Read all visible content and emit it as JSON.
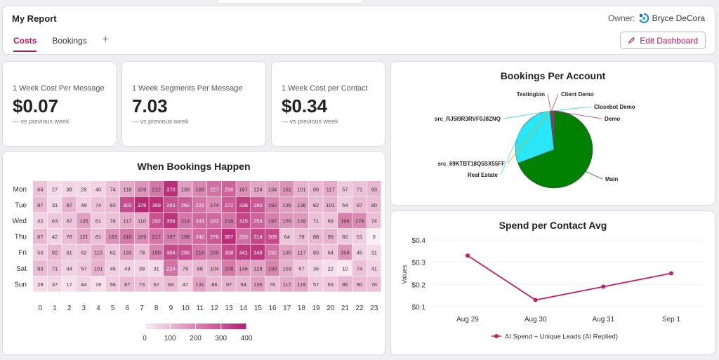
{
  "header": {
    "title": "My Report",
    "owner_label": "Owner:",
    "owner_name": "Bryce DeCora",
    "tabs": [
      {
        "label": "Costs"
      },
      {
        "label": "Bookings"
      }
    ],
    "add_tab_label": "+",
    "edit_label": "Edit Dashboard"
  },
  "kpis": [
    {
      "label": "1 Week Cost Per Message",
      "value": "$0.07",
      "sub": "— vs previous week"
    },
    {
      "label": "1 Week Segments Per Message",
      "value": "7.03",
      "sub": "— vs previous week"
    },
    {
      "label": "1 Week Cost per Contact",
      "value": "$0.34",
      "sub": "— vs previous week"
    }
  ],
  "colors": {
    "accent": "#b5175a",
    "heat_low": "#fbeef4",
    "heat_high": "#b51f6e",
    "pie_main": "#008000",
    "pie_real_estate": "#29e6f7",
    "line": "#c41f63"
  },
  "heatmap": {
    "title": "When Bookings Happen",
    "chart_data": {
      "type": "heatmap",
      "title": "When Bookings Happen",
      "rows": [
        "Mon",
        "Tue",
        "Wed",
        "Thu",
        "Fri",
        "Sat",
        "Sun"
      ],
      "columns": [
        "0",
        "1",
        "2",
        "3",
        "4",
        "5",
        "6",
        "7",
        "8",
        "9",
        "10",
        "11",
        "12",
        "13",
        "14",
        "15",
        "16",
        "17",
        "18",
        "19",
        "20",
        "21",
        "22",
        "23"
      ],
      "values": [
        [
          66,
          27,
          38,
          29,
          40,
          74,
          118,
          159,
          212,
          370,
          138,
          183,
          227,
          256,
          167,
          124,
          134,
          161,
          101,
          90,
          117,
          57,
          71,
          93
        ],
        [
          87,
          31,
          97,
          48,
          74,
          83,
          303,
          378,
          369,
          293,
          268,
          222,
          174,
          272,
          338,
          280,
          192,
          135,
          136,
          82,
          101,
          54,
          87,
          80
        ],
        [
          42,
          63,
          67,
          135,
          61,
          76,
          117,
          110,
          292,
          356,
          214,
          243,
          242,
          218,
          315,
          254,
          197,
          155,
          149,
          71,
          69,
          196,
          178,
          74
        ],
        [
          87,
          42,
          78,
          121,
          81,
          163,
          210,
          169,
          217,
          197,
          198,
          240,
          278,
          367,
          233,
          314,
          309,
          64,
          79,
          88,
          99,
          60,
          51,
          0
        ],
        [
          50,
          92,
          61,
          62,
          110,
          62,
          133,
          78,
          190,
          304,
          299,
          216,
          200,
          308,
          341,
          348,
          232,
          130,
          117,
          83,
          64,
          159,
          45,
          31
        ],
        [
          83,
          71,
          44,
          57,
          101,
          45,
          43,
          39,
          31,
          224,
          79,
          88,
          104,
          208,
          146,
          128,
          190,
          103,
          57,
          36,
          22,
          10,
          74,
          41
        ],
        [
          29,
          37,
          17,
          44,
          19,
          56,
          87,
          73,
          67,
          84,
          47,
          131,
          86,
          97,
          94,
          136,
          76,
          117,
          119,
          57,
          63,
          96,
          80,
          76
        ]
      ],
      "scale": {
        "min": 0,
        "max": 400,
        "ticks": [
          0,
          100,
          200,
          300,
          400
        ]
      }
    }
  },
  "pie": {
    "title": "Bookings Per Account",
    "chart_data": {
      "type": "pie",
      "title": "Bookings Per Account",
      "slices": [
        {
          "name": "Main",
          "value": 69
        },
        {
          "name": "Real Estate",
          "value": 29
        },
        {
          "name": "src_69KTBT18Q5SX55FF",
          "value": 0.2
        },
        {
          "name": "src_RJ5I9R3RVF0J8ZNQ",
          "value": 0.2
        },
        {
          "name": "Testington",
          "value": 0.2
        },
        {
          "name": "Client Demo",
          "value": 0.2
        },
        {
          "name": "Closebot Demo",
          "value": 0.2
        },
        {
          "name": "Demo",
          "value": 0.8
        }
      ]
    }
  },
  "line": {
    "title": "Spend per Contact Avg",
    "chart_data": {
      "type": "line",
      "title": "Spend per Contact Avg",
      "ylabel": "Values",
      "categories": [
        "Aug 29",
        "Aug 30",
        "Aug 31",
        "Sep 1"
      ],
      "series": [
        {
          "name": "AI Spend ÷ Unique Leads (AI Replied)",
          "values": [
            0.33,
            0.13,
            0.19,
            0.25
          ]
        }
      ],
      "ylim": [
        0.1,
        0.4
      ],
      "yticks": [
        "$0.1",
        "$0.2",
        "$0.3",
        "$0.4"
      ]
    }
  }
}
